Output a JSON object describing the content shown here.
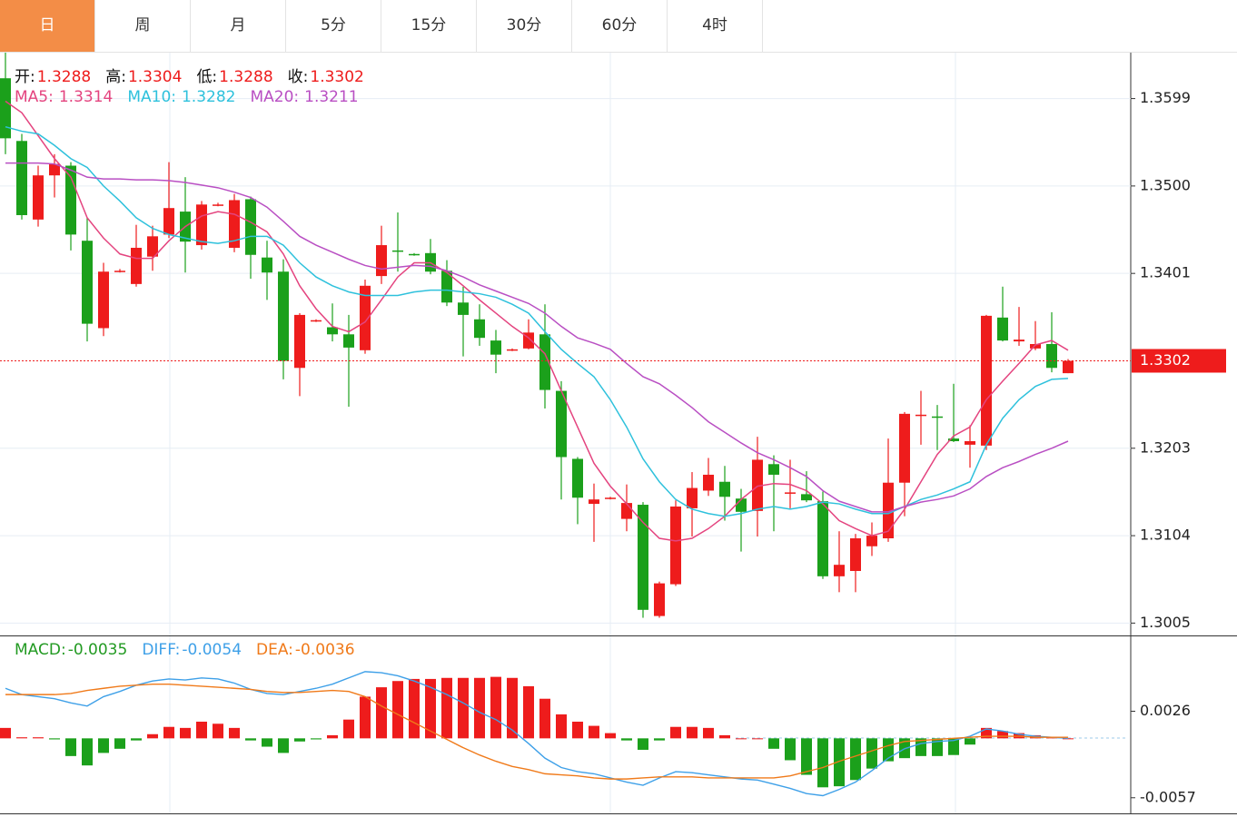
{
  "tabs": [
    "日",
    "周",
    "月",
    "5分",
    "15分",
    "30分",
    "60分",
    "4时"
  ],
  "active_tab": 0,
  "chart_data": [
    {
      "type": "candlestick",
      "up_color": "#ee1c1c",
      "down_color": "#1ba01b",
      "ohlc_labels": [
        "开:",
        "高:",
        "低:",
        "收:"
      ],
      "open": [
        1.3622,
        1.3551,
        1.3462,
        1.3512,
        1.3523,
        1.3438,
        1.3339,
        1.3403,
        1.3389,
        1.342,
        1.3445,
        1.3471,
        1.3433,
        1.3478,
        1.343,
        1.3485,
        1.3419,
        1.3403,
        1.3294,
        1.3347,
        1.334,
        1.3332,
        1.3314,
        1.3398,
        1.3427,
        1.3423,
        1.3424,
        1.3404,
        1.3368,
        1.3349,
        1.3325,
        1.3314,
        1.3316,
        1.3332,
        1.3268,
        1.3191,
        1.314,
        1.3146,
        1.3123,
        1.3139,
        1.3013,
        1.3049,
        1.3135,
        1.3155,
        1.3165,
        1.3146,
        1.3132,
        1.3185,
        1.3152,
        1.3151,
        1.3143,
        1.3058,
        1.3064,
        1.3092,
        1.3101,
        1.3164,
        1.324,
        1.3239,
        1.3214,
        1.3207,
        1.3206,
        1.3351,
        1.3324,
        1.3316,
        1.3321,
        1.3288
      ],
      "high": [
        1.3651,
        1.3559,
        1.3523,
        1.3536,
        1.3527,
        1.3464,
        1.3413,
        1.3406,
        1.3456,
        1.3455,
        1.3527,
        1.351,
        1.3483,
        1.3481,
        1.3491,
        1.3488,
        1.3438,
        1.3417,
        1.3356,
        1.3349,
        1.3367,
        1.3354,
        1.3394,
        1.3455,
        1.347,
        1.3424,
        1.344,
        1.3416,
        1.3386,
        1.3366,
        1.3337,
        1.3316,
        1.3349,
        1.3366,
        1.3279,
        1.3193,
        1.3163,
        1.3148,
        1.3162,
        1.3142,
        1.3052,
        1.3144,
        1.3176,
        1.3192,
        1.3183,
        1.3157,
        1.3216,
        1.3195,
        1.319,
        1.3177,
        1.3154,
        1.3109,
        1.3106,
        1.3119,
        1.3214,
        1.3244,
        1.3268,
        1.3252,
        1.3276,
        1.3229,
        1.3354,
        1.3386,
        1.3363,
        1.3347,
        1.3357,
        1.3304
      ],
      "low": [
        1.3536,
        1.3462,
        1.3454,
        1.3487,
        1.3427,
        1.3324,
        1.333,
        1.3402,
        1.3386,
        1.3404,
        1.3441,
        1.3402,
        1.3428,
        1.3477,
        1.3425,
        1.3395,
        1.3371,
        1.3281,
        1.3262,
        1.3346,
        1.3324,
        1.325,
        1.331,
        1.3389,
        1.3403,
        1.3421,
        1.34,
        1.3364,
        1.3307,
        1.3319,
        1.3288,
        1.3313,
        1.3315,
        1.3248,
        1.3145,
        1.3117,
        1.3097,
        1.3145,
        1.3109,
        1.3011,
        1.3011,
        1.3047,
        1.3103,
        1.3149,
        1.3121,
        1.3086,
        1.3103,
        1.3109,
        1.3135,
        1.3142,
        1.3055,
        1.304,
        1.304,
        1.3081,
        1.3097,
        1.3126,
        1.3207,
        1.3201,
        1.321,
        1.3181,
        1.3201,
        1.3324,
        1.3319,
        1.3314,
        1.3289,
        1.3288
      ],
      "close": [
        1.3554,
        1.3467,
        1.3512,
        1.3525,
        1.3445,
        1.3344,
        1.3403,
        1.3404,
        1.343,
        1.3443,
        1.3475,
        1.3437,
        1.3479,
        1.3479,
        1.3484,
        1.3422,
        1.3402,
        1.3302,
        1.3354,
        1.3348,
        1.3332,
        1.3317,
        1.3387,
        1.3433,
        1.3426,
        1.3422,
        1.3403,
        1.3368,
        1.3354,
        1.3328,
        1.3309,
        1.3315,
        1.3334,
        1.3269,
        1.3193,
        1.3147,
        1.3145,
        1.3147,
        1.3141,
        1.302,
        1.305,
        1.3137,
        1.3158,
        1.3173,
        1.3148,
        1.3131,
        1.319,
        1.3173,
        1.3153,
        1.3144,
        1.3058,
        1.3071,
        1.3101,
        1.3104,
        1.3164,
        1.3242,
        1.3241,
        1.3238,
        1.3211,
        1.3211,
        1.3353,
        1.3325,
        1.3326,
        1.3321,
        1.3294,
        1.3302
      ],
      "series": [
        {
          "name": "MA5:",
          "color": "#e4447f",
          "values": [
            1.3596,
            1.3583,
            1.3557,
            1.3531,
            1.351,
            1.3464,
            1.3441,
            1.3423,
            1.3418,
            1.3418,
            1.3438,
            1.3454,
            1.3466,
            1.3471,
            1.3468,
            1.3459,
            1.3448,
            1.3423,
            1.3387,
            1.3361,
            1.3341,
            1.3335,
            1.3346,
            1.3371,
            1.3397,
            1.3413,
            1.3413,
            1.3402,
            1.3387,
            1.3371,
            1.3356,
            1.3341,
            1.3328,
            1.331,
            1.3268,
            1.3227,
            1.3186,
            1.316,
            1.314,
            1.3119,
            1.3101,
            1.3098,
            1.3101,
            1.3112,
            1.3126,
            1.3145,
            1.316,
            1.3163,
            1.3162,
            1.3155,
            1.314,
            1.3121,
            1.3112,
            1.3104,
            1.3109,
            1.3134,
            1.3165,
            1.3196,
            1.3217,
            1.3227,
            1.3258,
            1.3279,
            1.3299,
            1.332,
            1.3325,
            1.3314
          ]
        },
        {
          "name": "MA10:",
          "color": "#2ec1dc",
          "values": [
            1.3567,
            1.3562,
            1.3559,
            1.3546,
            1.3531,
            1.3521,
            1.35,
            1.3483,
            1.3464,
            1.3452,
            1.3445,
            1.3441,
            1.3437,
            1.3435,
            1.3438,
            1.3443,
            1.3443,
            1.3433,
            1.3413,
            1.3397,
            1.3387,
            1.338,
            1.3376,
            1.3376,
            1.3376,
            1.338,
            1.3382,
            1.3382,
            1.338,
            1.3378,
            1.3374,
            1.3366,
            1.3356,
            1.3335,
            1.3315,
            1.3299,
            1.3284,
            1.3258,
            1.3227,
            1.3191,
            1.3165,
            1.3145,
            1.3134,
            1.3129,
            1.3126,
            1.3129,
            1.3134,
            1.3137,
            1.3134,
            1.3137,
            1.3142,
            1.314,
            1.3134,
            1.3129,
            1.3129,
            1.3137,
            1.3145,
            1.315,
            1.3157,
            1.3165,
            1.3207,
            1.3237,
            1.3258,
            1.3273,
            1.3281,
            1.3282
          ]
        },
        {
          "name": "MA20:",
          "color": "#b94fc3",
          "values": [
            1.3526,
            1.3526,
            1.3526,
            1.3525,
            1.3518,
            1.351,
            1.3508,
            1.3508,
            1.3507,
            1.3507,
            1.3506,
            1.3504,
            1.3501,
            1.3498,
            1.3493,
            1.3487,
            1.3476,
            1.346,
            1.3443,
            1.3433,
            1.3425,
            1.3417,
            1.341,
            1.3406,
            1.3408,
            1.341,
            1.3409,
            1.3404,
            1.3397,
            1.3388,
            1.3381,
            1.3374,
            1.3367,
            1.3356,
            1.3341,
            1.3328,
            1.3322,
            1.3315,
            1.3299,
            1.3284,
            1.3276,
            1.3263,
            1.3249,
            1.3233,
            1.3221,
            1.3209,
            1.3198,
            1.319,
            1.3181,
            1.3171,
            1.3155,
            1.3143,
            1.3137,
            1.3131,
            1.3131,
            1.3137,
            1.3142,
            1.3145,
            1.3149,
            1.3157,
            1.3171,
            1.3181,
            1.3188,
            1.3196,
            1.3203,
            1.3211
          ]
        }
      ],
      "ylim": [
        1.2991,
        1.3651
      ],
      "yticks": [
        1.3599,
        {
          "value": 1.35,
          "label": "1.3500"
        },
        1.3401,
        1.3203,
        1.3104,
        1.3005
      ],
      "grid": true
    },
    {
      "type": "macd",
      "bars": {
        "name": "MACD:",
        "legend_value": -0.0035,
        "color": "#229a22",
        "up_color": "#ee1c1c",
        "down_color": "#1ba01b",
        "values": [
          0.001,
          0.0001,
          0.0001,
          -0.0001,
          -0.0017,
          -0.0026,
          -0.0014,
          -0.001,
          -0.0002,
          0.0004,
          0.0011,
          0.001,
          0.0016,
          0.0014,
          0.001,
          -0.0002,
          -0.0008,
          -0.0014,
          -0.0003,
          -0.0001,
          0.0003,
          0.0018,
          0.004,
          0.0049,
          0.0055,
          0.0057,
          0.0057,
          0.0058,
          0.0058,
          0.0058,
          0.0059,
          0.0058,
          0.005,
          0.0038,
          0.0023,
          0.0016,
          0.0012,
          0.0005,
          -0.0002,
          -0.0011,
          -0.0002,
          0.0011,
          0.0011,
          0.001,
          0.0003,
          0,
          0,
          -0.001,
          -0.0021,
          -0.0035,
          -0.0047,
          -0.0046,
          -0.004,
          -0.0029,
          -0.0022,
          -0.0019,
          -0.0017,
          -0.0017,
          -0.0016,
          -0.0006,
          0.001,
          0.0007,
          0.0005,
          0.0003,
          0.0001,
          0
        ]
      },
      "series": [
        {
          "name": "DIFF:",
          "legend_value": -0.0054,
          "color": "#3ea0e8",
          "values": [
            0.0048,
            0.0042,
            0.004,
            0.0038,
            0.0034,
            0.0031,
            0.004,
            0.0045,
            0.0051,
            0.0055,
            0.0057,
            0.0056,
            0.0058,
            0.0057,
            0.0053,
            0.0047,
            0.0043,
            0.0042,
            0.0045,
            0.0048,
            0.0052,
            0.0058,
            0.0064,
            0.0063,
            0.006,
            0.0055,
            0.0049,
            0.0042,
            0.0034,
            0.0025,
            0.0018,
            0.0008,
            -0.0005,
            -0.0019,
            -0.0028,
            -0.0032,
            -0.0034,
            -0.0038,
            -0.0042,
            -0.0045,
            -0.0038,
            -0.0032,
            -0.0033,
            -0.0035,
            -0.0037,
            -0.0039,
            -0.004,
            -0.0044,
            -0.0048,
            -0.0053,
            -0.0055,
            -0.0049,
            -0.0042,
            -0.0031,
            -0.0019,
            -0.001,
            -0.0005,
            -0.0003,
            -0.0002,
            0.0002,
            0.0009,
            0.0007,
            0.0004,
            0.0002,
            0.0001,
            0
          ]
        },
        {
          "name": "DEA:",
          "legend_value": -0.0036,
          "color": "#f07a1a",
          "values": [
            0.0042,
            0.0042,
            0.0042,
            0.0042,
            0.0043,
            0.0046,
            0.0048,
            0.005,
            0.0051,
            0.0052,
            0.0052,
            0.0051,
            0.005,
            0.0049,
            0.0048,
            0.0047,
            0.0045,
            0.0044,
            0.0044,
            0.0045,
            0.0046,
            0.0045,
            0.004,
            0.0031,
            0.0023,
            0.0015,
            0.0007,
            -0.0001,
            -0.0009,
            -0.0016,
            -0.0022,
            -0.0027,
            -0.003,
            -0.0034,
            -0.0035,
            -0.0036,
            -0.0038,
            -0.0039,
            -0.0039,
            -0.0038,
            -0.0037,
            -0.0037,
            -0.0037,
            -0.0038,
            -0.0038,
            -0.0038,
            -0.0038,
            -0.0038,
            -0.0036,
            -0.0032,
            -0.0028,
            -0.0022,
            -0.0017,
            -0.0012,
            -0.0007,
            -0.0003,
            -0.0002,
            -0.0001,
            0,
            0.0001,
            0.0002,
            0.0002,
            0.0002,
            0.0001,
            0.0001,
            0.0001
          ]
        }
      ],
      "ylim": [
        -0.0072,
        0.0097
      ],
      "yticks": [
        0.0026,
        -0.0057
      ]
    }
  ]
}
